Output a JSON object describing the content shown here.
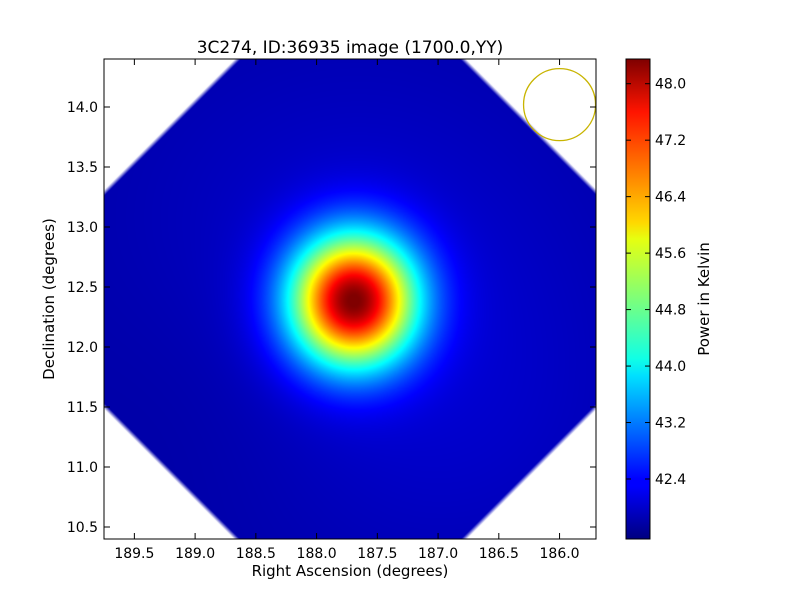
{
  "chart_data": {
    "type": "heatmap",
    "title": "3C274, ID:36935 image (1700.0,YY)",
    "xlabel": "Right Ascension (degrees)",
    "ylabel": "Declination (degrees)",
    "xlim": [
      189.75,
      185.7
    ],
    "ylim": [
      10.4,
      14.4
    ],
    "x_ticks": [
      189.5,
      189.0,
      188.5,
      188.0,
      187.5,
      187.0,
      186.5,
      186.0
    ],
    "x_tick_labels": [
      "189.5",
      "189.0",
      "188.5",
      "188.0",
      "187.5",
      "187.0",
      "186.5",
      "186.0"
    ],
    "y_ticks": [
      10.5,
      11.0,
      11.5,
      12.0,
      12.5,
      13.0,
      13.5,
      14.0
    ],
    "y_tick_labels": [
      "10.5",
      "11.0",
      "11.5",
      "12.0",
      "12.5",
      "13.0",
      "13.5",
      "14.0"
    ],
    "colorbar": {
      "label": "Power in Kelvin",
      "range": [
        41.55,
        48.35
      ],
      "ticks": [
        42.4,
        43.2,
        44.0,
        44.8,
        45.6,
        46.4,
        47.2,
        48.0
      ],
      "tick_labels": [
        "42.4",
        "43.2",
        "44.0",
        "44.8",
        "45.6",
        "46.4",
        "47.2",
        "48.0"
      ],
      "colormap": "jet"
    },
    "source": {
      "ra": 187.7,
      "dec": 12.39,
      "peak": 48.1,
      "background": 41.8
    },
    "beam_circle": {
      "ra": 186.0,
      "dec": 14.02,
      "color": "#c8b400"
    }
  }
}
